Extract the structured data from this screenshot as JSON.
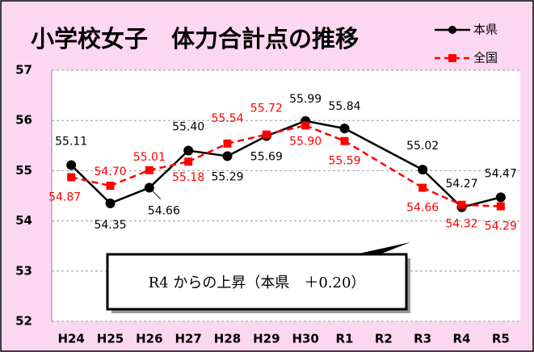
{
  "chart_data": {
    "type": "line",
    "title": "小学校女子　体力合計点の推移",
    "categories": [
      "H24",
      "H25",
      "H26",
      "H27",
      "H28",
      "H29",
      "H30",
      "R1",
      "R2",
      "R3",
      "R4",
      "R5"
    ],
    "series": [
      {
        "name": "本県",
        "color": "#000000",
        "values": [
          55.11,
          54.35,
          54.66,
          55.4,
          55.29,
          55.69,
          55.99,
          55.84,
          null,
          55.02,
          54.27,
          54.47
        ],
        "value_labels": [
          "55.11",
          "54.35",
          "54.66",
          "55.40",
          "55.29",
          "55.69",
          "55.99",
          "55.84",
          null,
          "55.02",
          "54.27",
          "54.47"
        ]
      },
      {
        "name": "全国",
        "color": "#ff0000",
        "values": [
          54.87,
          54.7,
          55.01,
          55.18,
          55.54,
          55.72,
          55.9,
          55.59,
          null,
          54.66,
          54.32,
          54.29
        ],
        "value_labels": [
          "54.87",
          "54.70",
          "55.01",
          "55.18",
          "55.54",
          "55.72",
          "55.90",
          "55.59",
          null,
          "54.66",
          "54.32",
          "54.29"
        ]
      }
    ],
    "ylim": [
      52,
      57
    ],
    "yticks": [
      52,
      53,
      54,
      55,
      56,
      57
    ],
    "grid": true,
    "annotation": "R4 からの上昇（本県　＋0.20）"
  }
}
